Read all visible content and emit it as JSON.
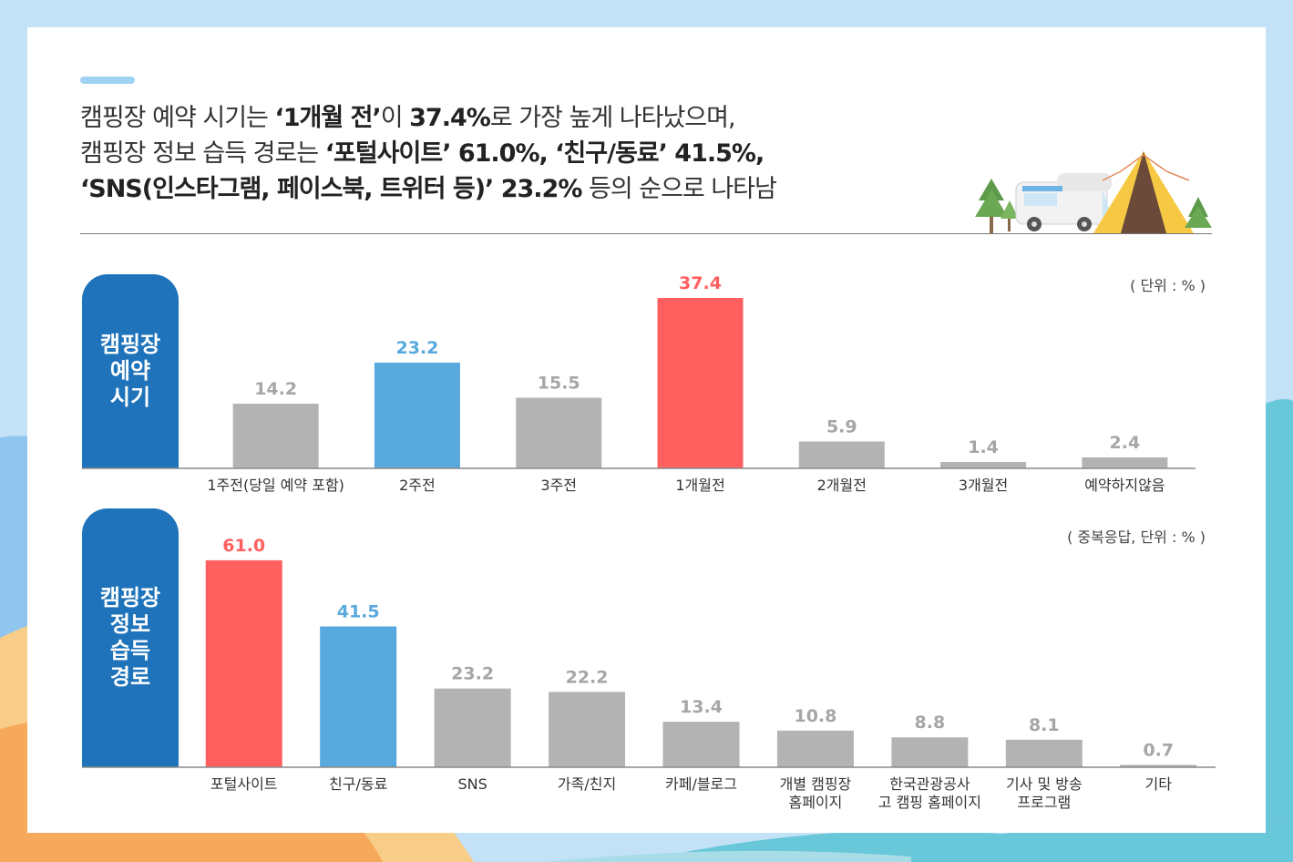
{
  "headline": {
    "line1": {
      "p1": "캠핑장 예약 시기는 ",
      "b1": "‘1개월 전’",
      "p2": "이 ",
      "b2": "37.4%",
      "p3": "로 가장 높게 나타났으며,"
    },
    "line2": {
      "p1": "캠핑장 정보 습득 경로는 ",
      "b1": "‘포털사이트’ 61.0%, ‘친구/동료’ 41.5%,"
    },
    "line3": {
      "b1": "‘SNS(인스타그램, 페이스북, 트위터 등)’ 23.2%",
      "p1": " 등의 순으로 나타남"
    }
  },
  "colors": {
    "highlight": "#ff5f5f",
    "second": "#58a9de",
    "neutral": "#b3b3b4",
    "tag": "#1f73ba"
  },
  "chart_data": [
    {
      "type": "bar",
      "tag_lines": [
        "캠핑장",
        "예약",
        "시기"
      ],
      "unit": "( 단위 : % )",
      "categories": [
        "1주전(당일 예약 포함)",
        "2주전",
        "3주전",
        "1개월전",
        "2개월전",
        "3개월전",
        "예약하지않음"
      ],
      "values": [
        14.2,
        23.2,
        15.5,
        37.4,
        5.9,
        1.4,
        2.4
      ],
      "value_labels": [
        "14.2",
        "23.2",
        "15.5",
        "37.4",
        "5.9",
        "1.4",
        "2.4"
      ],
      "highlight_index": 3,
      "second_index": 1,
      "ylim": [
        0,
        40
      ],
      "grid": false,
      "legend": "none"
    },
    {
      "type": "bar",
      "tag_lines": [
        "캠핑장",
        "정보",
        "습득",
        "경로"
      ],
      "unit": "( 중복응답, 단위 : % )",
      "categories": [
        "포털사이트",
        "친구/동료",
        "SNS",
        "가족/친지",
        "카페/블로그",
        "개별 캠핑장|홈페이지",
        "한국관광공사|고 캠핑 홈페이지",
        "기사 및 방송|프로그램",
        "기타"
      ],
      "values": [
        61.0,
        41.5,
        23.2,
        22.2,
        13.4,
        10.8,
        8.8,
        8.1,
        0.7
      ],
      "value_labels": [
        "61.0",
        "41.5",
        "23.2",
        "22.2",
        "13.4",
        "10.8",
        "8.8",
        "8.1",
        "0.7"
      ],
      "highlight_index": 0,
      "second_index": 1,
      "ylim": [
        0,
        65
      ],
      "grid": false,
      "legend": "none"
    }
  ]
}
